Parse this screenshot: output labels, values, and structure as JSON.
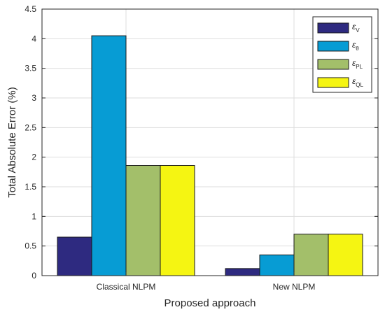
{
  "chart_data": {
    "type": "bar",
    "categories": [
      "Classical NLPM",
      "New NLPM"
    ],
    "series": [
      {
        "name": "εV",
        "symbol": "ε",
        "subscript": "V",
        "color": "#2e2a80",
        "values": [
          0.65,
          0.12
        ]
      },
      {
        "name": "εθ",
        "symbol": "ε",
        "subscript": "θ",
        "color": "#079cd4",
        "values": [
          4.05,
          0.35
        ]
      },
      {
        "name": "εPL",
        "symbol": "ε",
        "subscript": "PL",
        "color": "#a3bf6a",
        "values": [
          1.86,
          0.7
        ]
      },
      {
        "name": "εQL",
        "symbol": "ε",
        "subscript": "QL",
        "color": "#f5f512",
        "values": [
          1.86,
          0.7
        ]
      }
    ],
    "title": "",
    "xlabel": "Proposed approach",
    "ylabel": "Total Absolute Error (%)",
    "ylim": [
      0,
      4.5
    ],
    "yticks": [
      "0",
      "0.5",
      "1",
      "1.5",
      "2",
      "2.5",
      "3",
      "3.5",
      "4",
      "4.5"
    ],
    "grid": true,
    "legend_position": "top-right"
  }
}
